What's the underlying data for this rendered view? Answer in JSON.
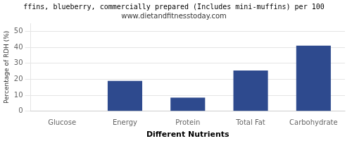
{
  "chart_data": {
    "type": "bar",
    "title": "ffins, blueberry, commercially prepared (Includes mini-muffins) per 100",
    "subtitle": "www.dietandfitnesstoday.com",
    "x_label": "Different Nutrients",
    "y_label": "Percentage of RDH (%)",
    "categories": [
      "Glucose",
      "Energy",
      "Protein",
      "Total Fat",
      "Carbohydrate"
    ],
    "values": [
      0,
      19,
      8.5,
      25.5,
      41
    ],
    "color": "#2e4a8e",
    "ylim": [
      0,
      55
    ],
    "yticks": [
      0,
      10,
      20,
      30,
      40,
      50
    ],
    "grid": true
  }
}
